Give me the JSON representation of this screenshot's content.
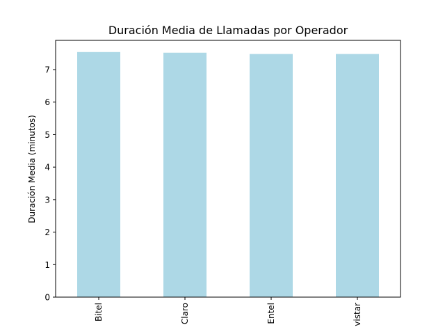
{
  "chart_data": {
    "type": "bar",
    "title": "Duración Media de Llamadas por Operador",
    "xlabel": "",
    "ylabel": "Duración Media (minutos)",
    "categories": [
      "Bitel",
      "Claro",
      "Entel",
      "vistar"
    ],
    "values": [
      7.54,
      7.52,
      7.48,
      7.48
    ],
    "ylim": [
      0,
      7.9
    ],
    "yticks": [
      0,
      1,
      2,
      3,
      4,
      5,
      6,
      7
    ],
    "bar_color": "#add8e6",
    "grid": false,
    "legend": "none"
  }
}
